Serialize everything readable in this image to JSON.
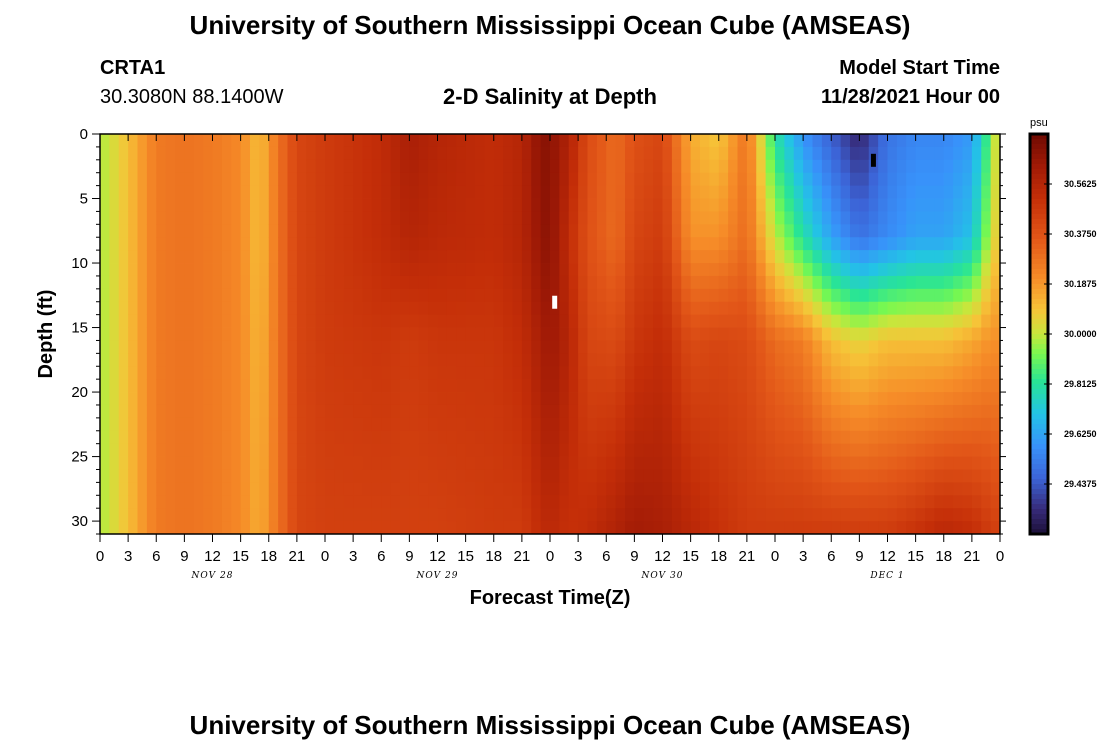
{
  "header": {
    "title": "University of Southern Mississippi Ocean Cube (AMSEAS)",
    "station_id": "CRTA1",
    "station_coords": "30.3080N  88.1400W",
    "plot_title": "2-D Salinity at Depth",
    "model_start_label": "Model Start Time",
    "model_start_value": "11/28/2021 Hour 00"
  },
  "footer": {
    "title": "University of Southern Mississippi Ocean Cube (AMSEAS)"
  },
  "chart_data": {
    "type": "heatmap",
    "xlabel": "Forecast Time(Z)",
    "ylabel": "Depth (ft)",
    "x_tick_labels": [
      "0",
      "3",
      "6",
      "9",
      "12",
      "15",
      "18",
      "21",
      "0",
      "3",
      "6",
      "9",
      "12",
      "15",
      "18",
      "21",
      "0",
      "3",
      "6",
      "9",
      "12",
      "15",
      "18",
      "21",
      "0",
      "3",
      "6",
      "9",
      "12",
      "15",
      "18",
      "21",
      "0"
    ],
    "x_range_hours": [
      0,
      96
    ],
    "day_labels": [
      "NOV 28",
      "NOV 29",
      "NOV 30",
      "DEC 1"
    ],
    "y_ticks": [
      "0",
      "5",
      "10",
      "15",
      "20",
      "25",
      "30"
    ],
    "y_range_ft": [
      0,
      31
    ],
    "colorbar": {
      "unit": "psu",
      "labels": [
        "30.5625",
        "30.3750",
        "30.1875",
        "30.0000",
        "29.8125",
        "29.6250",
        "29.4375"
      ],
      "range": [
        29.25,
        30.75
      ]
    },
    "profiles": [
      {
        "hour": 0,
        "values": [
          29.97,
          29.97,
          29.97,
          29.97
        ]
      },
      {
        "hour": 3,
        "values": [
          30.1,
          30.1,
          30.1,
          30.1
        ]
      },
      {
        "hour": 6,
        "values": [
          30.26,
          30.26,
          30.26,
          30.26
        ]
      },
      {
        "hour": 9,
        "values": [
          30.28,
          30.28,
          30.28,
          30.28
        ]
      },
      {
        "hour": 12,
        "values": [
          30.26,
          30.26,
          30.26,
          30.26
        ]
      },
      {
        "hour": 15,
        "values": [
          30.22,
          30.22,
          30.22,
          30.22
        ]
      },
      {
        "hour": 17,
        "values": [
          30.1,
          30.1,
          30.12,
          30.14
        ]
      },
      {
        "hour": 19,
        "values": [
          30.28,
          30.28,
          30.28,
          30.28
        ]
      },
      {
        "hour": 21,
        "values": [
          30.42,
          30.42,
          30.42,
          30.42
        ]
      },
      {
        "hour": 24,
        "values": [
          30.46,
          30.46,
          30.46,
          30.44
        ]
      },
      {
        "hour": 30,
        "values": [
          30.52,
          30.52,
          30.48,
          30.44
        ]
      },
      {
        "hour": 33,
        "values": [
          30.6,
          30.56,
          30.46,
          30.44
        ]
      },
      {
        "hour": 36,
        "values": [
          30.56,
          30.54,
          30.48,
          30.44
        ]
      },
      {
        "hour": 42,
        "values": [
          30.52,
          30.52,
          30.48,
          30.46
        ]
      },
      {
        "hour": 45,
        "values": [
          30.56,
          30.56,
          30.52,
          30.46
        ]
      },
      {
        "hour": 47,
        "values": [
          30.68,
          30.66,
          30.6,
          30.52
        ]
      },
      {
        "hour": 48,
        "values": [
          30.68,
          30.68,
          30.64,
          30.54
        ]
      },
      {
        "hour": 50,
        "values": [
          30.58,
          30.52,
          30.56,
          30.5
        ]
      },
      {
        "hour": 52,
        "values": [
          30.4,
          30.38,
          30.42,
          30.52
        ]
      },
      {
        "hour": 55,
        "values": [
          30.3,
          30.3,
          30.4,
          30.58
        ]
      },
      {
        "hour": 57,
        "values": [
          30.38,
          30.42,
          30.48,
          30.62
        ]
      },
      {
        "hour": 60,
        "values": [
          30.42,
          30.46,
          30.52,
          30.6
        ]
      },
      {
        "hour": 63,
        "values": [
          30.14,
          30.2,
          30.4,
          30.55
        ]
      },
      {
        "hour": 66,
        "values": [
          30.08,
          30.2,
          30.42,
          30.5
        ]
      },
      {
        "hour": 69,
        "values": [
          30.28,
          30.3,
          30.4,
          30.46
        ]
      },
      {
        "hour": 72,
        "values": [
          29.8,
          30.0,
          30.3,
          30.46
        ]
      },
      {
        "hour": 75,
        "values": [
          29.58,
          29.8,
          30.25,
          30.46
        ]
      },
      {
        "hour": 78,
        "values": [
          29.45,
          29.62,
          30.1,
          30.46
        ]
      },
      {
        "hour": 81,
        "values": [
          29.32,
          29.5,
          30.05,
          30.46
        ]
      },
      {
        "hour": 84,
        "values": [
          29.5,
          29.56,
          30.1,
          30.46
        ]
      },
      {
        "hour": 87,
        "values": [
          29.55,
          29.62,
          30.1,
          30.5
        ]
      },
      {
        "hour": 90,
        "values": [
          29.55,
          29.62,
          30.1,
          30.55
        ]
      },
      {
        "hour": 93,
        "values": [
          29.6,
          29.7,
          30.15,
          30.52
        ]
      },
      {
        "hour": 95,
        "values": [
          29.9,
          30.0,
          30.2,
          30.46
        ]
      },
      {
        "hour": 96,
        "values": [
          30.1,
          30.1,
          30.2,
          30.44
        ]
      }
    ],
    "profile_depths_ft": [
      0,
      8,
      16,
      31
    ],
    "markers": [
      {
        "hour": 48.5,
        "depth_ft": 13,
        "color": "#ffffff"
      },
      {
        "hour": 82.5,
        "depth_ft": 2,
        "color": "#000000"
      }
    ]
  }
}
